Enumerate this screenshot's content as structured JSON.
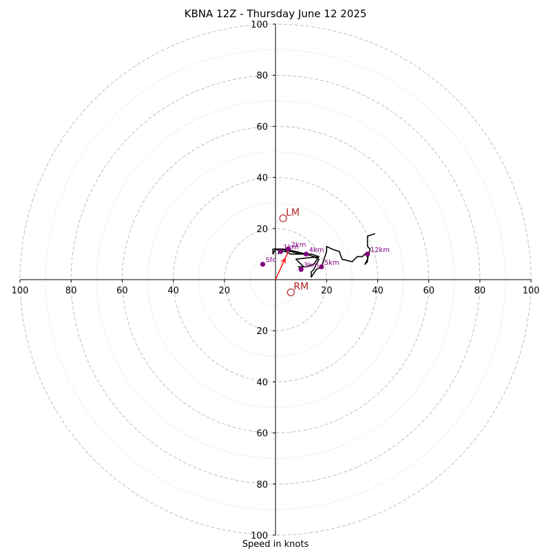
{
  "chart_data": {
    "type": "scatter",
    "subtype": "hodograph",
    "title": "KBNA 12Z - Thursday June 12 2025",
    "xlabel": "Speed in knots",
    "ylabel": "",
    "xlim": [
      -100,
      100
    ],
    "ylim": [
      -100,
      100
    ],
    "units": "knots",
    "ring_major": [
      20,
      40,
      60,
      80,
      100
    ],
    "ring_minor": [
      10,
      30,
      50,
      70,
      90
    ],
    "grid": true,
    "x_tick_labels": [
      "100",
      "80",
      "60",
      "40",
      "20",
      "20",
      "40",
      "60",
      "80",
      "100"
    ],
    "y_tick_labels_upper": [
      "20",
      "40",
      "60",
      "80",
      "100"
    ],
    "y_tick_labels_lower": [
      "20",
      "40",
      "60",
      "80",
      "100"
    ],
    "hodograph_trace": [
      [
        1,
        10
      ],
      [
        2,
        12
      ],
      [
        6,
        11
      ],
      [
        10,
        10
      ],
      [
        14,
        10
      ],
      [
        17,
        9
      ],
      [
        8,
        8
      ],
      [
        11,
        5
      ],
      [
        9,
        5
      ],
      [
        12,
        5
      ],
      [
        15,
        6
      ],
      [
        17,
        9
      ],
      [
        14,
        10
      ],
      [
        12,
        10
      ],
      [
        10,
        10
      ],
      [
        8,
        10
      ],
      [
        6,
        10
      ],
      [
        4,
        11
      ],
      [
        2,
        11
      ],
      [
        0,
        12
      ],
      [
        -1,
        10
      ],
      [
        -1,
        12
      ],
      [
        3,
        12
      ],
      [
        8,
        11
      ],
      [
        12,
        10
      ],
      [
        15,
        9
      ],
      [
        17,
        8
      ],
      [
        16,
        6
      ],
      [
        15,
        4
      ],
      [
        14,
        3
      ],
      [
        14,
        1
      ],
      [
        16,
        4
      ],
      [
        18,
        5
      ],
      [
        19,
        8
      ],
      [
        20,
        11
      ],
      [
        20,
        13
      ],
      [
        22,
        12
      ],
      [
        25,
        11
      ],
      [
        26,
        8
      ],
      [
        30,
        7
      ],
      [
        32,
        9
      ],
      [
        34,
        9
      ],
      [
        35,
        10
      ],
      [
        36,
        9
      ],
      [
        36,
        7
      ],
      [
        35,
        6
      ],
      [
        36,
        8
      ],
      [
        37,
        12
      ],
      [
        36,
        13
      ],
      [
        36,
        17
      ],
      [
        39,
        18
      ]
    ],
    "levels": [
      {
        "label": "Sfc",
        "u": -5,
        "v": 6
      },
      {
        "label": "1km",
        "u": 2,
        "v": 11
      },
      {
        "label": "2km",
        "u": 5,
        "v": 12
      },
      {
        "label": "4km",
        "u": 12,
        "v": 10
      },
      {
        "label": "3km",
        "u": 10,
        "v": 4
      },
      {
        "label": "5km",
        "u": 18,
        "v": 5
      },
      {
        "label": "12km",
        "u": 36,
        "v": 10
      }
    ],
    "storm_motion": [
      {
        "label": "LM",
        "u": 3,
        "v": 24
      },
      {
        "label": "RM",
        "u": 6,
        "v": -5
      }
    ],
    "mean_vector": {
      "u": 5,
      "v": 11
    },
    "colors": {
      "trace": "#000000",
      "level_points": "#800080",
      "storm_motion": "#b22222",
      "mean_vector": "#ff0000",
      "grid": "#bdbdbd",
      "axes": "#000000"
    }
  }
}
